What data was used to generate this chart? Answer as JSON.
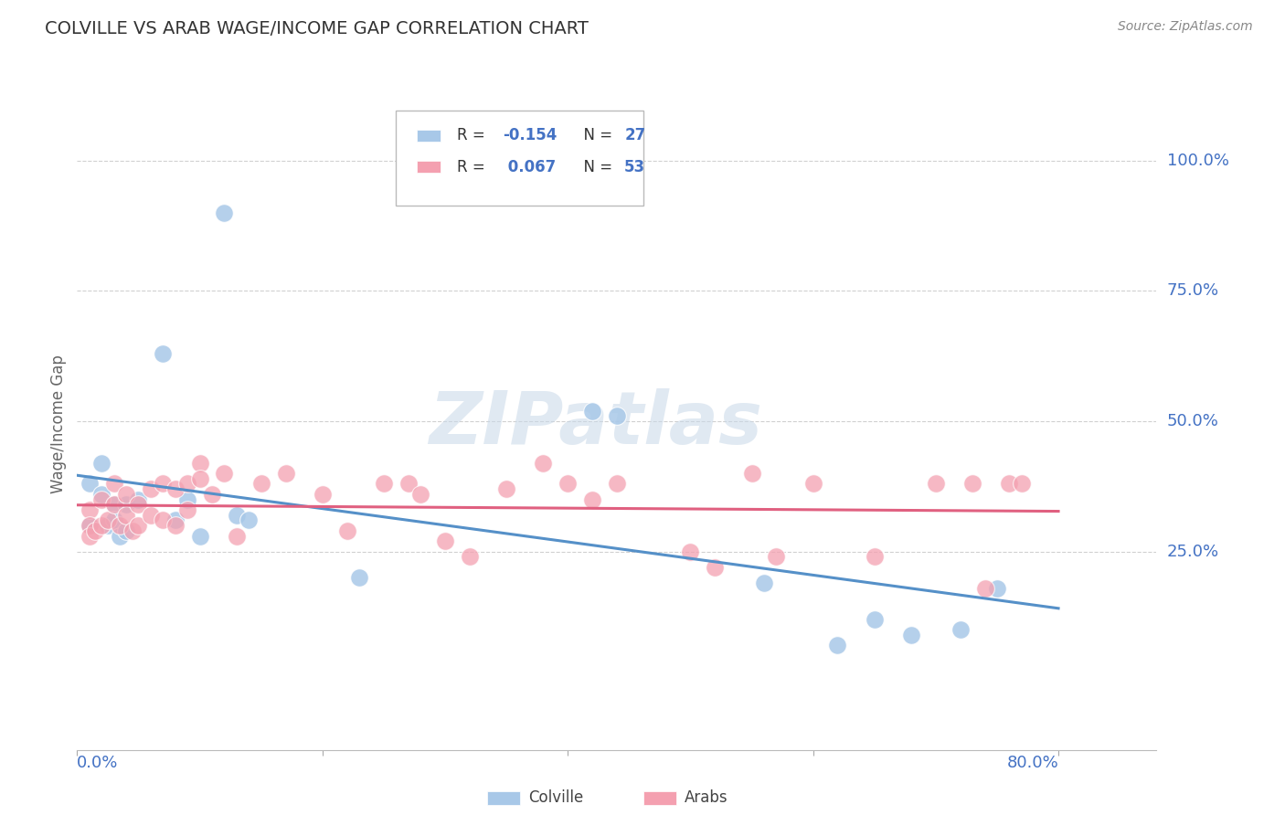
{
  "title": "COLVILLE VS ARAB WAGE/INCOME GAP CORRELATION CHART",
  "source": "Source: ZipAtlas.com",
  "ylabel": "Wage/Income Gap",
  "ytick_labels": [
    "100.0%",
    "75.0%",
    "50.0%",
    "25.0%"
  ],
  "ytick_values": [
    1.0,
    0.75,
    0.5,
    0.25
  ],
  "xlim": [
    0.0,
    0.88
  ],
  "ylim": [
    -0.13,
    1.12
  ],
  "legend_blue_r": "R = -0.154",
  "legend_blue_n": "N = 27",
  "legend_pink_r": "R =  0.067",
  "legend_pink_n": "N = 53",
  "blue_color": "#a8c8e8",
  "pink_color": "#f4a0b0",
  "blue_line_color": "#5590c8",
  "pink_line_color": "#e06080",
  "blue_x": [
    0.01,
    0.01,
    0.02,
    0.02,
    0.025,
    0.03,
    0.03,
    0.035,
    0.04,
    0.04,
    0.05,
    0.07,
    0.08,
    0.09,
    0.1,
    0.12,
    0.13,
    0.14,
    0.23,
    0.42,
    0.44,
    0.56,
    0.62,
    0.65,
    0.68,
    0.72,
    0.75
  ],
  "blue_y": [
    0.38,
    0.3,
    0.42,
    0.36,
    0.3,
    0.34,
    0.31,
    0.28,
    0.34,
    0.29,
    0.35,
    0.63,
    0.31,
    0.35,
    0.28,
    0.9,
    0.32,
    0.31,
    0.2,
    0.52,
    0.51,
    0.19,
    0.07,
    0.12,
    0.09,
    0.1,
    0.18
  ],
  "pink_x": [
    0.01,
    0.01,
    0.01,
    0.015,
    0.02,
    0.02,
    0.025,
    0.03,
    0.03,
    0.035,
    0.04,
    0.04,
    0.045,
    0.05,
    0.05,
    0.06,
    0.06,
    0.07,
    0.07,
    0.08,
    0.08,
    0.09,
    0.09,
    0.1,
    0.1,
    0.11,
    0.12,
    0.13,
    0.15,
    0.17,
    0.2,
    0.22,
    0.25,
    0.27,
    0.28,
    0.3,
    0.32,
    0.35,
    0.38,
    0.4,
    0.42,
    0.44,
    0.5,
    0.52,
    0.55,
    0.57,
    0.6,
    0.65,
    0.7,
    0.73,
    0.74,
    0.76,
    0.77
  ],
  "pink_y": [
    0.33,
    0.3,
    0.28,
    0.29,
    0.35,
    0.3,
    0.31,
    0.38,
    0.34,
    0.3,
    0.36,
    0.32,
    0.29,
    0.34,
    0.3,
    0.37,
    0.32,
    0.38,
    0.31,
    0.37,
    0.3,
    0.38,
    0.33,
    0.42,
    0.39,
    0.36,
    0.4,
    0.28,
    0.38,
    0.4,
    0.36,
    0.29,
    0.38,
    0.38,
    0.36,
    0.27,
    0.24,
    0.37,
    0.42,
    0.38,
    0.35,
    0.38,
    0.25,
    0.22,
    0.4,
    0.24,
    0.38,
    0.24,
    0.38,
    0.38,
    0.18,
    0.38,
    0.38
  ],
  "watermark": "ZIPatlas",
  "background_color": "#ffffff",
  "grid_color": "#d0d0d0",
  "axis_label_color": "#4472c4",
  "r_text_color": "#333333",
  "n_text_color": "#4472c4"
}
